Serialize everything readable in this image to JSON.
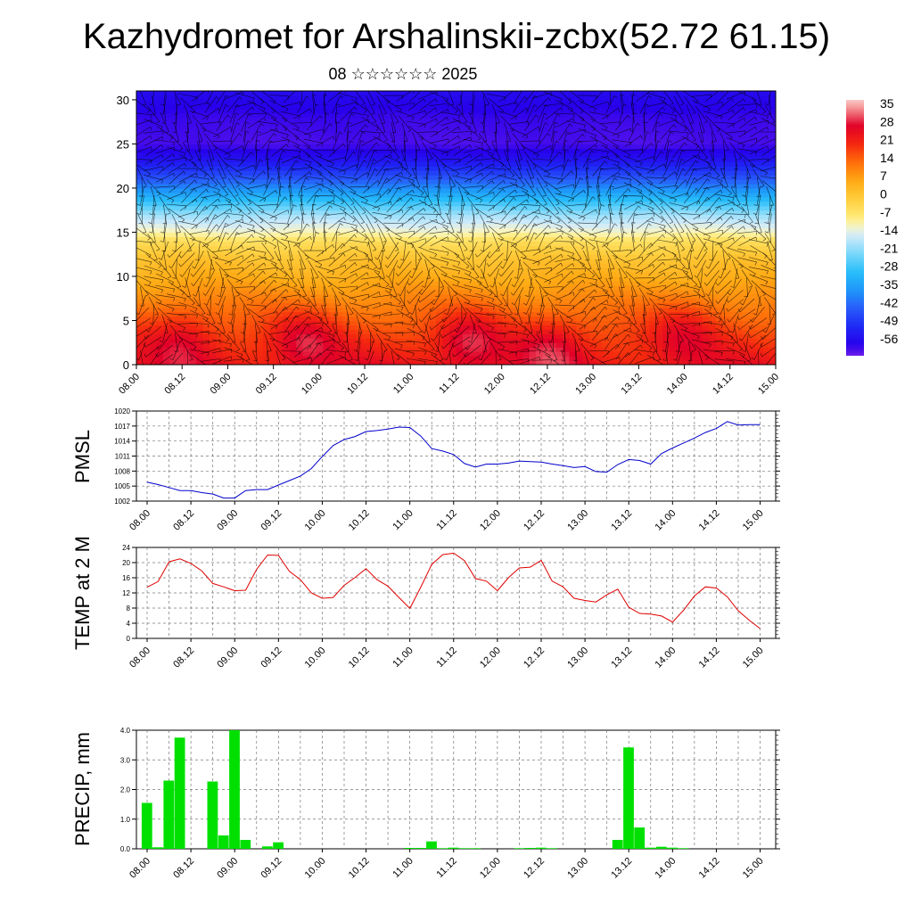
{
  "page": {
    "title": "Kazhydromet for Arshalinskii-zcbx(52.72 61.15)",
    "subtitle": "08 ☆☆☆☆☆☆ 2025"
  },
  "colors": {
    "pmsl_line": "#0000cc",
    "temp_line": "#e00000",
    "precip_bar": "#00e000",
    "grid": "#777777"
  },
  "chart_data": [
    {
      "id": "cross-section",
      "type": "heatmap",
      "title": "",
      "xlabel": "",
      "ylabel": "",
      "x_tick_labels": [
        "08.00",
        "08.12",
        "09.00",
        "09.12",
        "10.00",
        "10.12",
        "11.00",
        "11.12",
        "12.00",
        "12.12",
        "13.00",
        "13.12",
        "14.00",
        "14.12",
        "15.00"
      ],
      "y_ticks": [
        0,
        5,
        10,
        15,
        20,
        25,
        30
      ],
      "ylim": [
        0,
        31
      ],
      "colorbar_labels": [
        "35",
        "28",
        "21",
        "14",
        "7",
        "0",
        "-7",
        "-14",
        "-21",
        "-28",
        "-35",
        "-42",
        "-49",
        "-56"
      ],
      "colorbar_range": [
        -60,
        38
      ],
      "level_temperature_profile": [
        {
          "level": 0,
          "value": 24
        },
        {
          "level": 3,
          "value": 20
        },
        {
          "level": 6,
          "value": 14
        },
        {
          "level": 9,
          "value": 8
        },
        {
          "level": 12,
          "value": 2
        },
        {
          "level": 14,
          "value": -4
        },
        {
          "level": 15,
          "value": -10
        },
        {
          "level": 17,
          "value": -18
        },
        {
          "level": 19,
          "value": -30
        },
        {
          "level": 21,
          "value": -42
        },
        {
          "level": 23,
          "value": -52
        },
        {
          "level": 25,
          "value": -58
        },
        {
          "level": 28,
          "value": -57
        },
        {
          "level": 31,
          "value": -54
        }
      ],
      "warm_cores": [
        {
          "x": 0.5,
          "level": 3,
          "value": 30
        },
        {
          "x": 1.85,
          "level": 3,
          "value": 32
        },
        {
          "x": 3.65,
          "level": 3,
          "value": 34
        },
        {
          "x": 4.55,
          "level": 2,
          "value": 32
        },
        {
          "x": 6.0,
          "level": 4,
          "value": 28
        }
      ]
    },
    {
      "id": "pmsl",
      "type": "line",
      "ylabel": "PMSL",
      "x_tick_labels": [
        "08.00",
        "08.12",
        "09.00",
        "09.12",
        "10.00",
        "10.12",
        "11.00",
        "11.12",
        "12.00",
        "12.12",
        "13.00",
        "13.12",
        "14.00",
        "14.12",
        "15.00"
      ],
      "y_ticks": [
        1002,
        1005,
        1008,
        1011,
        1014,
        1017,
        1020
      ],
      "ylim": [
        1002,
        1020
      ],
      "x": [
        0,
        0.125,
        0.25,
        0.375,
        0.5,
        0.625,
        0.75,
        0.875,
        1,
        1.125,
        1.25,
        1.375,
        1.5,
        1.625,
        1.75,
        1.875,
        2,
        2.125,
        2.25,
        2.375,
        2.5,
        2.625,
        2.75,
        2.875,
        3,
        3.125,
        3.25,
        3.375,
        3.5,
        3.625,
        3.75,
        3.875,
        4,
        4.125,
        4.25,
        4.375,
        4.5,
        4.625,
        4.75,
        4.875,
        5,
        5.125,
        5.25,
        5.375,
        5.5,
        5.625,
        5.75,
        5.875,
        6,
        6.125,
        6.25,
        6.375,
        6.5,
        6.625,
        6.75,
        6.875,
        7
      ],
      "values": [
        1005.8,
        1005.3,
        1004.7,
        1004.1,
        1004.1,
        1003.7,
        1003.4,
        1002.6,
        1002.6,
        1004.1,
        1004.3,
        1004.3,
        1005.2,
        1006.1,
        1007.0,
        1008.5,
        1010.9,
        1013.1,
        1014.3,
        1014.9,
        1015.9,
        1016.1,
        1016.4,
        1016.8,
        1016.7,
        1015.0,
        1012.5,
        1012.0,
        1011.3,
        1009.5,
        1008.8,
        1009.4,
        1009.4,
        1009.6,
        1010.0,
        1009.9,
        1009.8,
        1009.4,
        1009.1,
        1008.7,
        1008.9,
        1007.9,
        1007.8,
        1009.3,
        1010.3,
        1010.1,
        1009.4,
        1011.5,
        1012.6,
        1013.6,
        1014.6,
        1015.7,
        1016.5,
        1017.9,
        1017.2,
        1017.3,
        1017.3
      ]
    },
    {
      "id": "temp2m",
      "type": "line",
      "ylabel": "TEMP at 2 M",
      "x_tick_labels": [
        "08.00",
        "08.12",
        "09.00",
        "09.12",
        "10.00",
        "10.12",
        "11.00",
        "11.12",
        "12.00",
        "12.12",
        "13.00",
        "13.12",
        "14.00",
        "14.12",
        "15.00"
      ],
      "y_ticks": [
        0,
        4,
        8,
        12,
        16,
        20,
        24
      ],
      "ylim": [
        0,
        24
      ],
      "x": [
        0,
        0.125,
        0.25,
        0.375,
        0.5,
        0.625,
        0.75,
        0.875,
        1,
        1.125,
        1.25,
        1.375,
        1.5,
        1.625,
        1.75,
        1.875,
        2,
        2.125,
        2.25,
        2.375,
        2.5,
        2.625,
        2.75,
        2.875,
        3,
        3.125,
        3.25,
        3.375,
        3.5,
        3.625,
        3.75,
        3.875,
        4,
        4.125,
        4.25,
        4.375,
        4.5,
        4.625,
        4.75,
        4.875,
        5,
        5.125,
        5.25,
        5.375,
        5.5,
        5.625,
        5.75,
        5.875,
        6,
        6.125,
        6.25,
        6.375,
        6.5,
        6.625,
        6.75,
        6.875,
        7
      ],
      "values": [
        13.5,
        15.0,
        20.2,
        21.0,
        19.8,
        17.8,
        14.5,
        13.6,
        12.6,
        12.7,
        18.2,
        22.0,
        21.9,
        17.7,
        15.5,
        12.0,
        10.6,
        10.8,
        14.0,
        16.1,
        18.4,
        15.5,
        13.8,
        10.8,
        7.9,
        13.5,
        19.5,
        22.1,
        22.5,
        20.5,
        15.8,
        15.1,
        12.6,
        16.0,
        18.6,
        18.8,
        20.6,
        15.1,
        13.6,
        10.6,
        10.0,
        9.6,
        11.5,
        13.0,
        8.2,
        6.6,
        6.4,
        5.9,
        4.3,
        7.4,
        11.2,
        13.6,
        13.3,
        11.0,
        7.3,
        4.8,
        2.6
      ]
    },
    {
      "id": "precip",
      "type": "bar",
      "ylabel": "PRECIP, mm",
      "x_tick_labels": [
        "08.00",
        "08.12",
        "09.00",
        "09.12",
        "10.00",
        "10.12",
        "11.00",
        "11.12",
        "12.00",
        "12.12",
        "13.00",
        "13.12",
        "14.00",
        "14.12",
        "15.00"
      ],
      "y_tick_labels": [
        "0.0",
        "1.0",
        "2.0",
        "3.0",
        "4.0"
      ],
      "y_ticks": [
        0,
        1,
        2,
        3,
        4
      ],
      "ylim": [
        0,
        4
      ],
      "x": [
        0,
        0.125,
        0.25,
        0.375,
        0.5,
        0.625,
        0.75,
        0.875,
        1,
        1.125,
        1.25,
        1.375,
        1.5,
        1.625,
        1.75,
        1.875,
        2,
        2.125,
        2.25,
        2.375,
        2.5,
        2.625,
        2.75,
        2.875,
        3,
        3.125,
        3.25,
        3.375,
        3.5,
        3.625,
        3.75,
        3.875,
        4,
        4.125,
        4.25,
        4.375,
        4.5,
        4.625,
        4.75,
        4.875,
        5,
        5.125,
        5.25,
        5.375,
        5.5,
        5.625,
        5.75,
        5.875,
        6,
        6.125,
        6.25,
        6.375,
        6.5,
        6.625,
        6.75,
        6.875,
        7
      ],
      "values": [
        1.55,
        0.05,
        2.3,
        3.75,
        0,
        0,
        2.27,
        0.45,
        4.0,
        0.3,
        0,
        0.08,
        0.22,
        0,
        0,
        0,
        0,
        0,
        0,
        0,
        0,
        0,
        0,
        0,
        0.03,
        0.03,
        0.25,
        0.02,
        0.04,
        0.02,
        0.02,
        0,
        0,
        0,
        0.02,
        0.03,
        0.04,
        0.02,
        0,
        0,
        0,
        0,
        0,
        0.3,
        3.42,
        0.72,
        0.04,
        0.07,
        0.04,
        0.02,
        0,
        0,
        0,
        0,
        0,
        0,
        0
      ]
    }
  ]
}
